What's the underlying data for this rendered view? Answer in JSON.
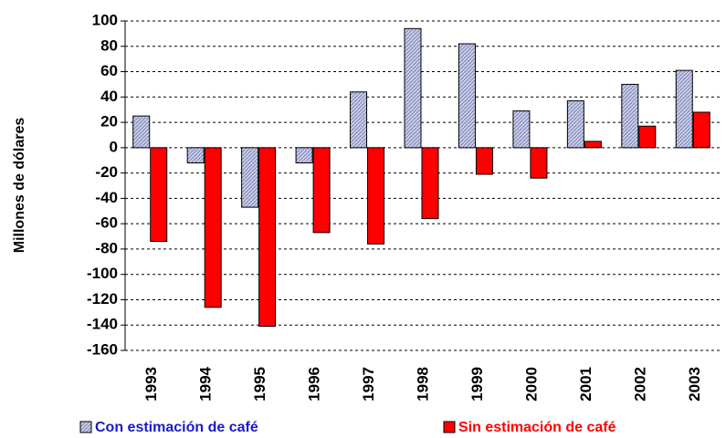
{
  "chart_data": {
    "type": "bar",
    "y_label": "Millones de dólares",
    "categories": [
      "1993",
      "1994",
      "1995",
      "1996",
      "1997",
      "1998",
      "1999",
      "2000",
      "2001",
      "2002",
      "2003"
    ],
    "series": [
      {
        "name": "Con estimación de café",
        "color": "#c8cce8",
        "values": [
          25,
          -12,
          -47,
          -12,
          44,
          94,
          82,
          29,
          37,
          50,
          61
        ]
      },
      {
        "name": "Sin estimación de café",
        "color": "#ff0000",
        "values": [
          -74,
          -126,
          -141,
          -67,
          -76,
          -56,
          -21,
          -24,
          5,
          17,
          28
        ]
      }
    ],
    "ylim": [
      -160,
      100
    ],
    "yticks": [
      -160,
      -140,
      -120,
      -100,
      -80,
      -60,
      -40,
      -20,
      0,
      20,
      40,
      60,
      80,
      100
    ],
    "grid": true,
    "legend": "bottom"
  }
}
